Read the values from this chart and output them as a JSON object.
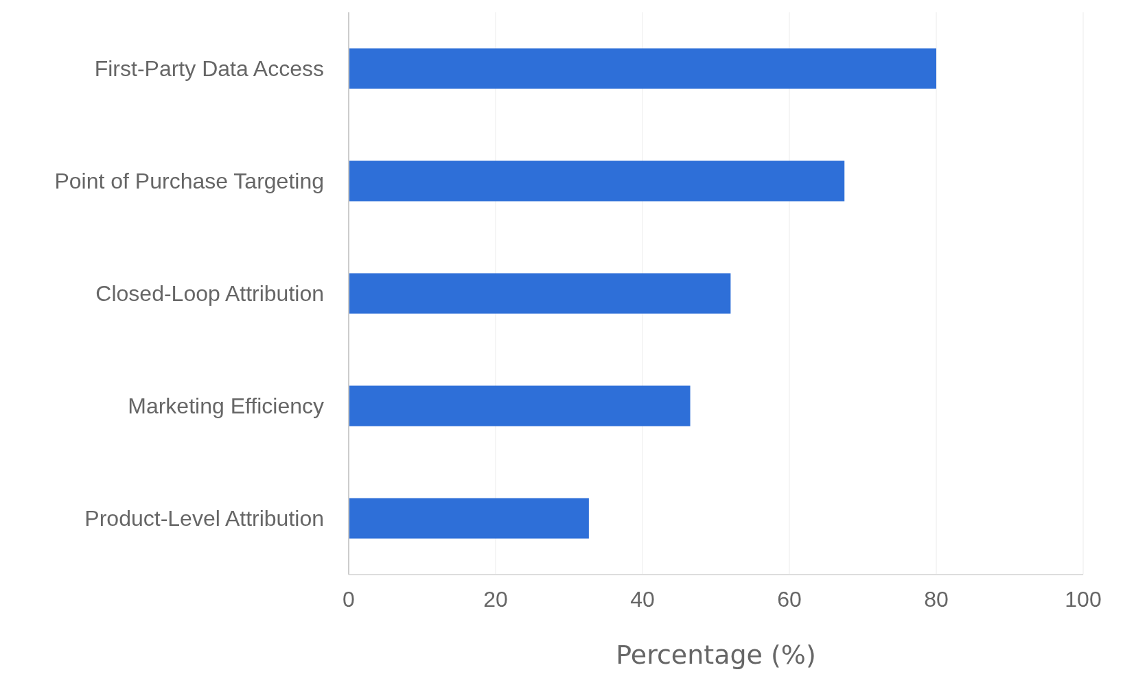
{
  "chart_data": {
    "type": "bar",
    "orientation": "horizontal",
    "xlabel": "Percentage (%)",
    "categories": [
      "First-Party Data Access",
      "Point of Purchase Targeting",
      "Closed-Loop Attribution",
      "Marketing Efficiency",
      "Product-Level Attribution"
    ],
    "values": [
      80,
      67.5,
      52,
      46.5,
      32.7
    ],
    "color": "#2e6fd8",
    "xlim": [
      0,
      100
    ],
    "xticks": [
      0,
      20,
      40,
      60,
      80,
      100
    ],
    "grid": "x"
  }
}
